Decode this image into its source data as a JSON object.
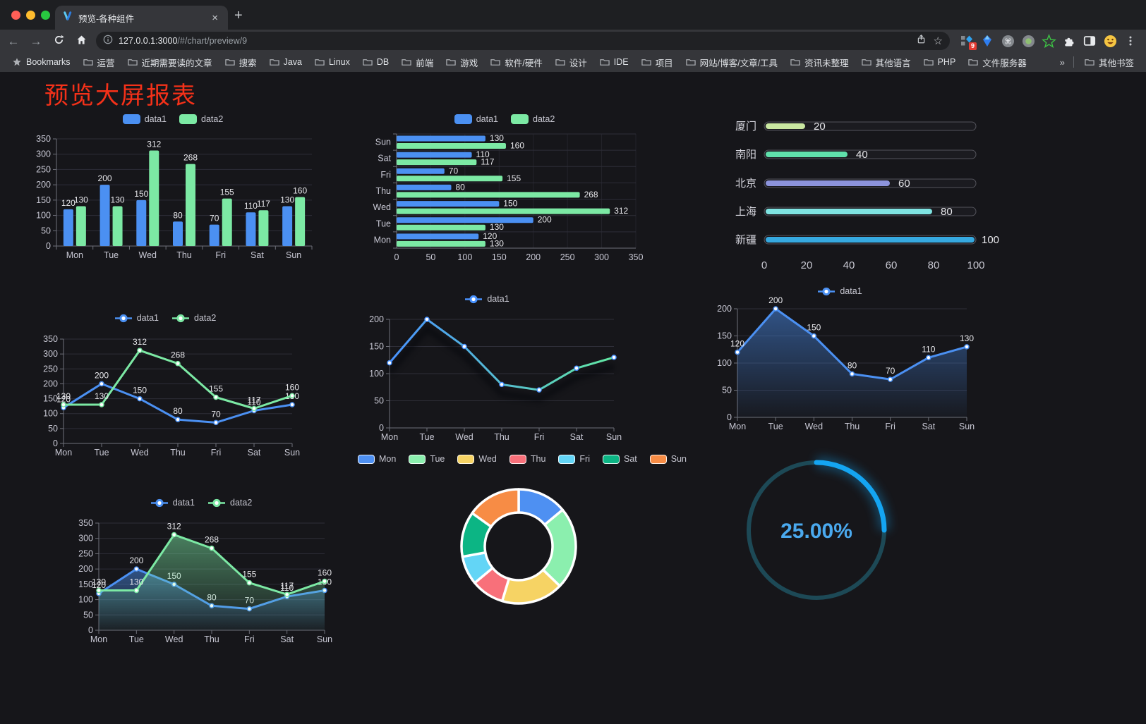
{
  "browser": {
    "traffic_lights": [
      "#FF5F57",
      "#FEBC2E",
      "#28C840"
    ],
    "tab_title": "预览-各种组件",
    "tab_close": "×",
    "new_tab": "+",
    "back": "←",
    "forward": "→",
    "url_host": "127.0.0.1:3000",
    "url_rest": "/#/chart/preview/9",
    "bookmark_star": "☆",
    "extensions_badge": "9",
    "overflow_chevron": "»"
  },
  "bookmarks": {
    "star_label": "Bookmarks",
    "folders": [
      "运营",
      "近期需要读的文章",
      "搜索",
      "Java",
      "Linux",
      "DB",
      "前端",
      "游戏",
      "软件/硬件",
      "设计",
      "IDE",
      "项目",
      "网站/博客/文章/工具",
      "资讯未整理",
      "其他语言",
      "PHP",
      "文件服务器"
    ],
    "other_bookmarks": "其他书签"
  },
  "page": {
    "title": "预览大屏报表"
  },
  "theme": {
    "background": "#16161A",
    "grid": "#2E2E38",
    "axis": "#6E7079",
    "tick_label": "#C8C8D4",
    "value_label": "#E8E8EC",
    "legend_text": "#C6C6D0",
    "series_blue": "#4B90F2",
    "series_green": "#7CE9A4"
  },
  "chart_data": [
    {
      "id": "bar-grouped",
      "type": "bar",
      "categories": [
        "Mon",
        "Tue",
        "Wed",
        "Thu",
        "Fri",
        "Sat",
        "Sun"
      ],
      "series": [
        {
          "name": "data1",
          "color": "#4B90F2",
          "values": [
            120,
            200,
            150,
            80,
            70,
            110,
            130
          ]
        },
        {
          "name": "data2",
          "color": "#7CE9A4",
          "values": [
            130,
            130,
            312,
            268,
            155,
            117,
            160
          ]
        }
      ],
      "ylim": [
        0,
        350
      ],
      "ytick": 50,
      "legend": "roundRect",
      "value_labels": true
    },
    {
      "id": "bar-horizontal",
      "type": "hbar",
      "categories_top_down": [
        "Sun",
        "Sat",
        "Fri",
        "Thu",
        "Wed",
        "Tue",
        "Mon"
      ],
      "series": [
        {
          "name": "data1",
          "color": "#4B90F2",
          "values": [
            130,
            110,
            70,
            80,
            150,
            200,
            120
          ]
        },
        {
          "name": "data2",
          "color": "#7CE9A4",
          "values": [
            160,
            117,
            155,
            268,
            312,
            130,
            130
          ]
        }
      ],
      "xlim": [
        0,
        350
      ],
      "xtick": 50,
      "legend": "roundRect",
      "value_labels": true
    },
    {
      "id": "progress",
      "type": "progress",
      "max": 100,
      "items": [
        {
          "label": "厦门",
          "value": 20,
          "color": "#C9E7A1"
        },
        {
          "label": "南阳",
          "value": 40,
          "color": "#5FE0AB"
        },
        {
          "label": "北京",
          "value": 60,
          "color": "#8C93DC"
        },
        {
          "label": "上海",
          "value": 80,
          "color": "#7FE4E2"
        },
        {
          "label": "新疆",
          "value": 100,
          "color": "#36A9E0"
        }
      ],
      "axis_ticks": [
        0,
        20,
        40,
        60,
        80,
        100
      ]
    },
    {
      "id": "line-dual",
      "type": "line",
      "categories": [
        "Mon",
        "Tue",
        "Wed",
        "Thu",
        "Fri",
        "Sat",
        "Sun"
      ],
      "series": [
        {
          "name": "data1",
          "color": "#4B90F2",
          "values": [
            120,
            200,
            150,
            80,
            70,
            110,
            130
          ]
        },
        {
          "name": "data2",
          "color": "#7CE9A4",
          "values": [
            130,
            130,
            312,
            268,
            155,
            117,
            160
          ]
        }
      ],
      "ylim": [
        0,
        350
      ],
      "ytick": 50,
      "labels": true,
      "legend": "lineMarker"
    },
    {
      "id": "line-gradient",
      "type": "line",
      "categories": [
        "Mon",
        "Tue",
        "Wed",
        "Thu",
        "Fri",
        "Sat",
        "Sun"
      ],
      "series": [
        {
          "name": "data1",
          "color": "#4992FF",
          "gradient": [
            "#4992FF",
            "#62E9A3"
          ],
          "values": [
            120,
            200,
            150,
            80,
            70,
            110,
            130
          ]
        }
      ],
      "ylim": [
        0,
        200
      ],
      "ytick": 50,
      "labels": false,
      "legend": "lineMarker",
      "shadow": true
    },
    {
      "id": "area-single",
      "type": "line",
      "categories": [
        "Mon",
        "Tue",
        "Wed",
        "Thu",
        "Fri",
        "Sat",
        "Sun"
      ],
      "series": [
        {
          "name": "data1",
          "color": "#4B90F2",
          "area": true,
          "values": [
            120,
            200,
            150,
            80,
            70,
            110,
            130
          ]
        }
      ],
      "ylim": [
        0,
        200
      ],
      "ytick": 50,
      "labels": true,
      "legend": "lineMarker"
    },
    {
      "id": "area-dual",
      "type": "line",
      "categories": [
        "Mon",
        "Tue",
        "Wed",
        "Thu",
        "Fri",
        "Sat",
        "Sun"
      ],
      "series": [
        {
          "name": "data1",
          "color": "#4B90F2",
          "area": true,
          "values": [
            120,
            200,
            150,
            80,
            70,
            110,
            130
          ]
        },
        {
          "name": "data2",
          "color": "#7CE9A4",
          "area": true,
          "values": [
            130,
            130,
            312,
            268,
            155,
            117,
            160
          ]
        }
      ],
      "ylim": [
        0,
        350
      ],
      "ytick": 50,
      "labels": true,
      "legend": "lineMarker"
    },
    {
      "id": "donut",
      "type": "pie",
      "legend": "roundRectBordered",
      "items": [
        {
          "label": "Mon",
          "value": 120,
          "color": "#4E90F2"
        },
        {
          "label": "Tue",
          "value": 200,
          "color": "#8BEFAE"
        },
        {
          "label": "Wed",
          "value": 150,
          "color": "#F6D364"
        },
        {
          "label": "Thu",
          "value": 80,
          "color": "#F8707A"
        },
        {
          "label": "Fri",
          "value": 70,
          "color": "#63D5F6"
        },
        {
          "label": "Sat",
          "value": 110,
          "color": "#0CB584"
        },
        {
          "label": "Sun",
          "value": 130,
          "color": "#F78C45"
        }
      ]
    },
    {
      "id": "gauge",
      "type": "gauge",
      "value": 25,
      "max": 100,
      "display": "25.00%",
      "color": "#14A5F2",
      "track": "#1D4956",
      "text_color": "#4AA9EE"
    }
  ]
}
